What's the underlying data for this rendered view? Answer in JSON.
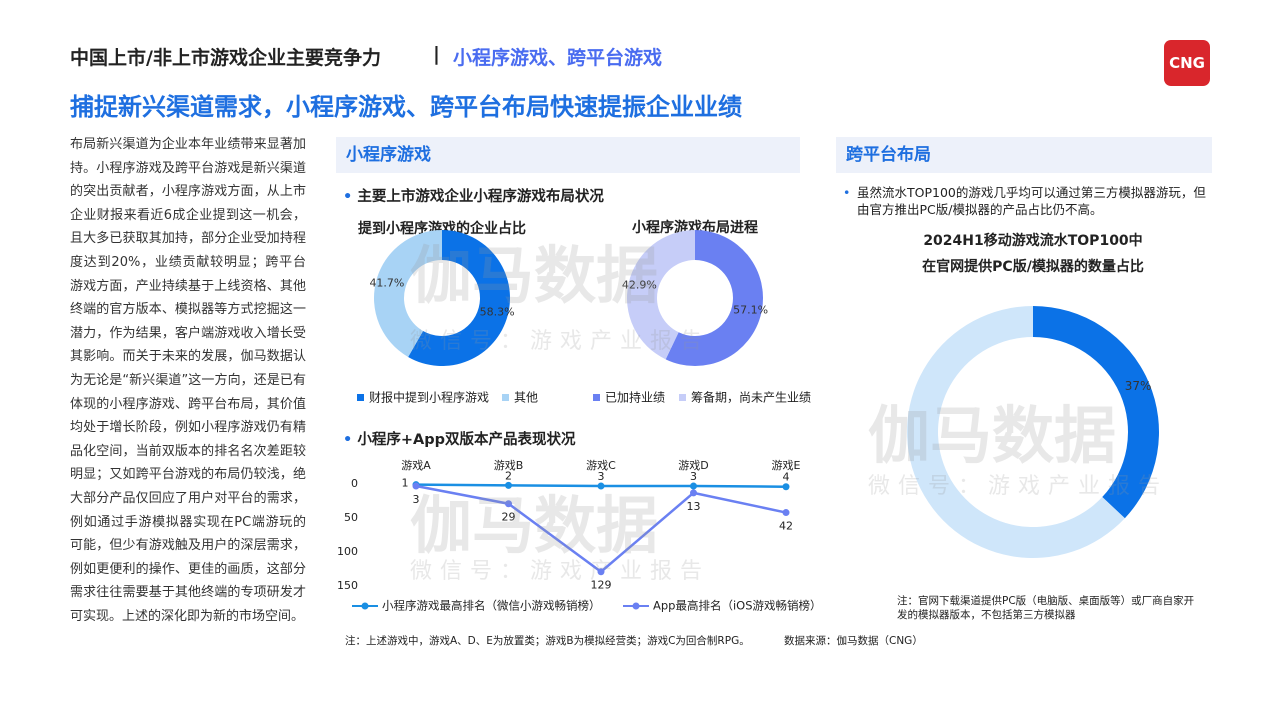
{
  "header": {
    "title": "中国上市/非上市游戏企业主要竞争力",
    "separator": "|",
    "subtitle": "小程序游戏、跨平台游戏",
    "logo": "CNG"
  },
  "headline": "捕捉新兴渠道需求，小程序游戏、跨平台布局快速提振企业业绩",
  "body_text": "布局新兴渠道为企业本年业绩带来显著加持。小程序游戏及跨平台游戏是新兴渠道的突出贡献者，小程序游戏方面，从上市企业财报来看近6成企业提到这一机会，且大多已获取其加持，部分企业受加持程度达到20%，业绩贡献较明显；跨平台游戏方面，产业持续基于上线资格、其他终端的官方版本、模拟器等方式挖掘这一潜力，作为结果，客户端游戏收入增长受其影响。而关于未来的发展，伽马数据认为无论是“新兴渠道”这一方向，还是已有体现的小程序游戏、跨平台布局，其价值均处于增长阶段，例如小程序游戏仍有精品化空间，当前双版本的排名名次差距较明显；又如跨平台游戏的布局仍较浅，绝大部分产品仅回应了用户对平台的需求，例如通过手游模拟器实现在PC端游玩的可能，但少有游戏触及用户的深层需求，例如更便利的操作、更佳的画质，这部分需求往往需要基于其他终端的专项研发才可实现。上述的深化即为新的市场空间。",
  "sections": {
    "mini": {
      "heading": "小程序游戏",
      "bullet1": "主要上市游戏企业小程序游戏布局状况",
      "bullet2": "小程序+App双版本产品表现状况",
      "note": "注：上述游戏中，游戏A、D、E为放置类；游戏B为模拟经营类；游戏C为回合制RPG。",
      "source": "数据来源：伽马数据（CNG）"
    },
    "cross": {
      "heading": "跨平台布局",
      "bullet": "虽然流水TOP100的游戏几乎均可以通过第三方模拟器游玩，但由官方推出PC版/模拟器的产品占比仍不高。",
      "note": "注：官网下载渠道提供PC版（电脑版、桌面版等）或厂商自家开发的模拟器版本，不包括第三方模拟器"
    }
  },
  "watermark": {
    "brand": "伽马数据",
    "sub": "微信号：游戏产业报告"
  },
  "chart_data": [
    {
      "type": "pie",
      "title": "提到小程序游戏的企业占比",
      "categories": [
        "财报中提到小程序游戏",
        "其他"
      ],
      "values": [
        58.3,
        41.7
      ],
      "value_labels": [
        "58.3%",
        "41.7%"
      ],
      "colors": [
        "#0b72e7",
        "#a8d3f5"
      ]
    },
    {
      "type": "pie",
      "title": "小程序游戏布局进程",
      "categories": [
        "已加持业绩",
        "筹备期，尚未产生业绩"
      ],
      "values": [
        57.1,
        42.9
      ],
      "value_labels": [
        "57.1%",
        "42.9%"
      ],
      "colors": [
        "#6a80f2",
        "#c6cdf8"
      ]
    },
    {
      "type": "line",
      "categories": [
        "游戏A",
        "游戏B",
        "游戏C",
        "游戏D",
        "游戏E"
      ],
      "series": [
        {
          "name": "小程序游戏最高排名（微信小游戏畅销榜）",
          "color": "#1a8fe3",
          "values": [
            1,
            2,
            3,
            3,
            4
          ]
        },
        {
          "name": "App最高排名（iOS游戏畅销榜）",
          "color": "#6a80f2",
          "values": [
            3,
            29,
            129,
            13,
            42
          ]
        }
      ],
      "ylim": [
        0,
        150
      ],
      "yticks": [
        0,
        50,
        100,
        150
      ],
      "y_inverted": true
    },
    {
      "type": "pie",
      "title_lines": [
        "2024H1移动游戏流水TOP100中",
        "在官网提供PC版/模拟器的数量占比"
      ],
      "values": [
        37,
        63
      ],
      "value_labels": [
        "37%",
        null
      ],
      "colors": [
        "#0b72e7",
        "#cfe6fa"
      ]
    }
  ]
}
